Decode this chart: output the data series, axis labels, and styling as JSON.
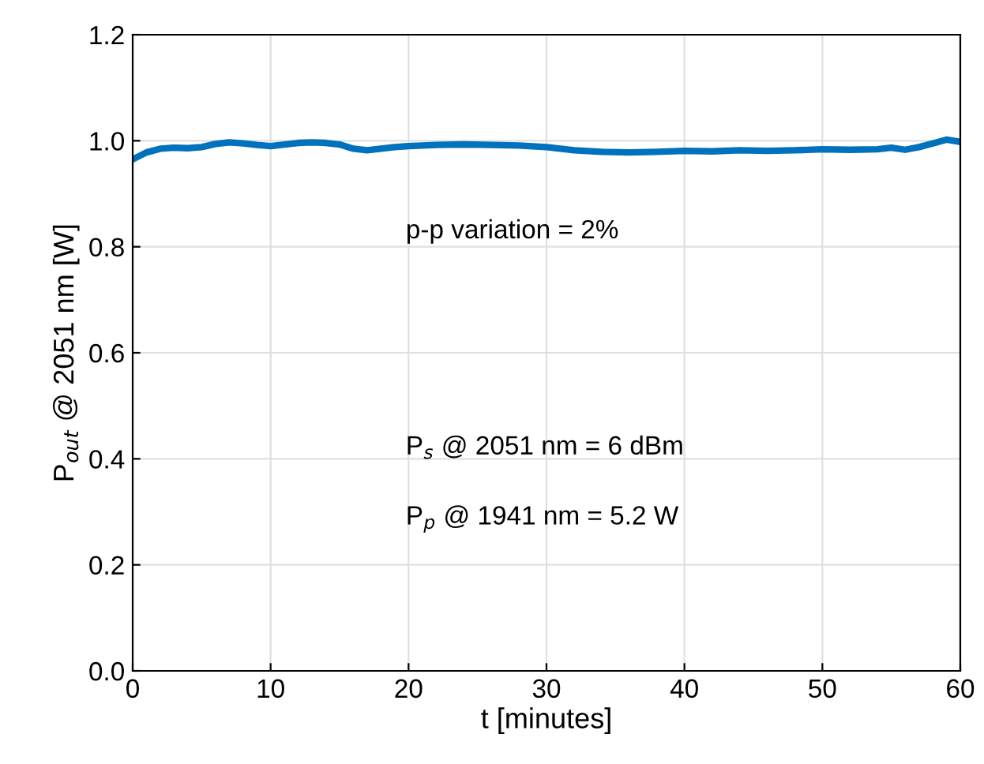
{
  "chart_data": {
    "type": "line",
    "xlabel": "t [minutes]",
    "ylabel": "P$_{out}$ @ 2051 nm [W]",
    "annotations": [
      "p-p variation = 2%",
      "P$_{s}$ @ 2051 nm = 6 dBm",
      "P$_{p}$ @ 1941 nm = 5.2 W"
    ],
    "x": [
      0,
      1,
      2,
      3,
      4,
      5,
      6,
      7,
      8,
      9,
      10,
      11,
      12,
      13,
      14,
      15,
      16,
      17,
      18,
      19,
      20,
      22,
      24,
      26,
      28,
      30,
      32,
      34,
      36,
      38,
      40,
      42,
      44,
      46,
      48,
      50,
      52,
      54,
      55,
      56,
      57,
      58,
      59,
      60
    ],
    "series": [
      {
        "color": "#0072bd",
        "values": [
          0.965,
          0.978,
          0.985,
          0.987,
          0.986,
          0.988,
          0.994,
          0.997,
          0.995,
          0.992,
          0.99,
          0.993,
          0.996,
          0.997,
          0.996,
          0.993,
          0.985,
          0.982,
          0.985,
          0.988,
          0.99,
          0.992,
          0.993,
          0.992,
          0.991,
          0.988,
          0.982,
          0.979,
          0.978,
          0.979,
          0.981,
          0.98,
          0.982,
          0.981,
          0.982,
          0.984,
          0.983,
          0.984,
          0.987,
          0.983,
          0.988,
          0.995,
          1.002,
          0.998
        ]
      }
    ],
    "xlim": [
      0,
      60
    ],
    "xticks": [
      0,
      10,
      20,
      30,
      40,
      50,
      60
    ],
    "ylim": [
      0,
      1.2
    ],
    "yticks": [
      {
        "value": 0,
        "label": "0.0"
      },
      {
        "value": 0.2,
        "label": "0.2"
      },
      {
        "value": 0.4,
        "label": "0.4"
      },
      {
        "value": 0.6,
        "label": "0.6"
      },
      {
        "value": 0.8,
        "label": "0.8"
      },
      {
        "value": 1.0,
        "label": "1.0"
      },
      {
        "value": 1.2,
        "label": "1.2"
      }
    ],
    "grid": true,
    "line_style": "solid"
  }
}
